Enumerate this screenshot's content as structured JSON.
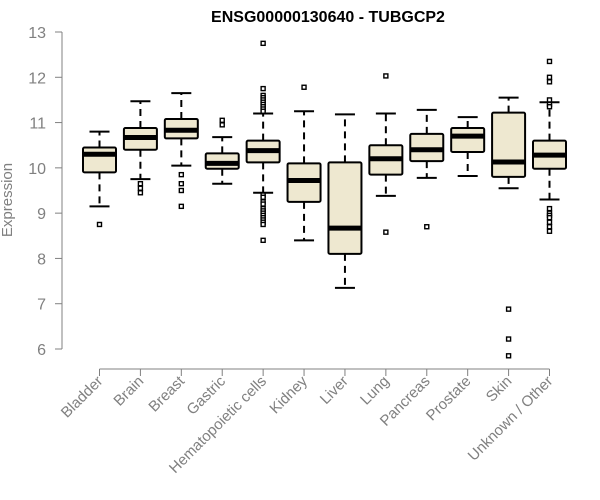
{
  "chart_data": {
    "type": "box",
    "title": "ENSG00000130640 - TUBGCP2",
    "xlabel": "",
    "ylabel": "Expression",
    "ylim": [
      5.8,
      13.1
    ],
    "yticks": [
      6,
      7,
      8,
      9,
      10,
      11,
      12,
      13
    ],
    "box_fill": "#EEE8D0",
    "categories": [
      "Bladder",
      "Brain",
      "Breast",
      "Gastric",
      "Hematopoietic cells",
      "Kidney",
      "Liver",
      "Lung",
      "Pancreas",
      "Prostate",
      "Skin",
      "Unknown / Other"
    ],
    "boxes": [
      {
        "category": "Bladder",
        "whisker_low": 9.15,
        "q1": 9.9,
        "median": 10.3,
        "q3": 10.45,
        "whisker_high": 10.8,
        "outliers": [
          8.75
        ]
      },
      {
        "category": "Brain",
        "whisker_low": 9.75,
        "q1": 10.4,
        "median": 10.67,
        "q3": 10.88,
        "whisker_high": 11.47,
        "outliers": [
          9.65,
          9.55,
          9.45
        ]
      },
      {
        "category": "Breast",
        "whisker_low": 10.05,
        "q1": 10.65,
        "median": 10.83,
        "q3": 11.08,
        "whisker_high": 11.65,
        "outliers": [
          9.85,
          9.65,
          9.5,
          9.15
        ]
      },
      {
        "category": "Gastric",
        "whisker_low": 9.65,
        "q1": 9.98,
        "median": 10.1,
        "q3": 10.32,
        "whisker_high": 10.68,
        "outliers": [
          11.05,
          10.95
        ]
      },
      {
        "category": "Hematopoietic cells",
        "whisker_low": 9.45,
        "q1": 10.12,
        "median": 10.38,
        "q3": 10.6,
        "whisker_high": 11.2,
        "outliers": [
          12.75,
          11.75,
          11.6,
          11.55,
          11.5,
          11.45,
          11.4,
          11.35,
          11.3,
          11.25,
          9.4,
          9.35,
          9.25,
          9.2,
          9.1,
          9.05,
          9.0,
          8.95,
          8.9,
          8.85,
          8.8,
          8.75,
          8.4
        ]
      },
      {
        "category": "Kidney",
        "whisker_low": 8.4,
        "q1": 9.25,
        "median": 9.72,
        "q3": 10.1,
        "whisker_high": 11.25,
        "outliers": [
          11.78
        ]
      },
      {
        "category": "Liver",
        "whisker_low": 7.35,
        "q1": 8.1,
        "median": 8.67,
        "q3": 10.12,
        "whisker_high": 11.18,
        "outliers": []
      },
      {
        "category": "Lung",
        "whisker_low": 9.38,
        "q1": 9.85,
        "median": 10.2,
        "q3": 10.5,
        "whisker_high": 11.2,
        "outliers": [
          12.03,
          8.58
        ]
      },
      {
        "category": "Pancreas",
        "whisker_low": 9.78,
        "q1": 10.15,
        "median": 10.4,
        "q3": 10.75,
        "whisker_high": 11.28,
        "outliers": [
          8.7
        ]
      },
      {
        "category": "Prostate",
        "whisker_low": 9.82,
        "q1": 10.35,
        "median": 10.7,
        "q3": 10.88,
        "whisker_high": 11.12,
        "outliers": []
      },
      {
        "category": "Skin",
        "whisker_low": 9.55,
        "q1": 9.8,
        "median": 10.13,
        "q3": 11.22,
        "whisker_high": 11.55,
        "outliers": [
          6.88,
          6.22,
          5.85
        ]
      },
      {
        "category": "Unknown / Other",
        "whisker_low": 9.3,
        "q1": 9.98,
        "median": 10.28,
        "q3": 10.6,
        "whisker_high": 11.45,
        "outliers": [
          12.35,
          12.0,
          11.9,
          11.5,
          11.4,
          11.35,
          9.1,
          9.0,
          8.95,
          8.9,
          8.8,
          8.7,
          8.6
        ]
      }
    ]
  }
}
